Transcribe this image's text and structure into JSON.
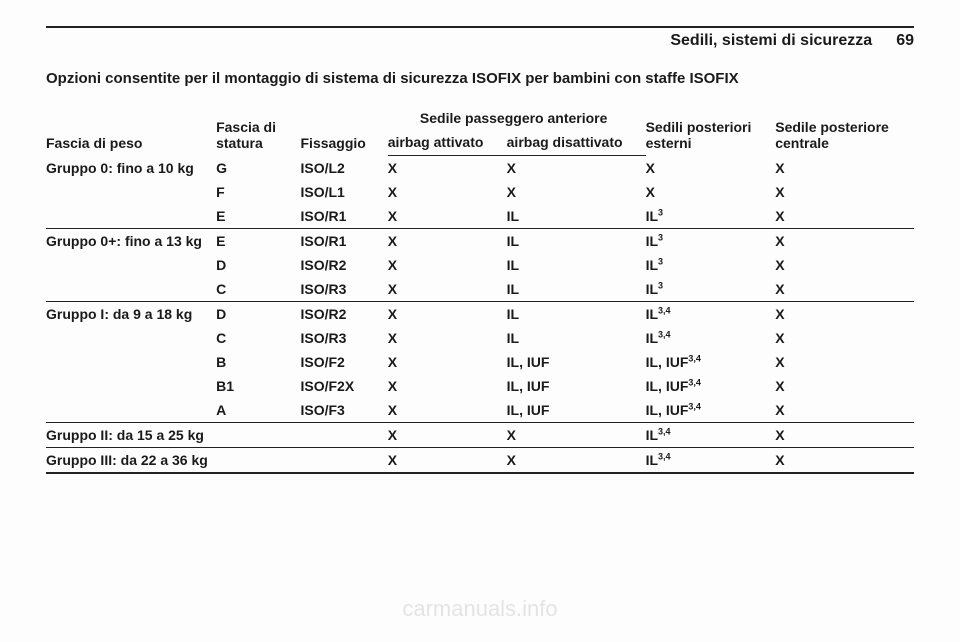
{
  "running_head": {
    "section": "Sedili, sistemi di sicurezza",
    "page": "69"
  },
  "section_title": "Opzioni consentite per il montaggio di sistema di sicurezza ISOFIX per bambini con staffe ISOFIX",
  "headers": {
    "peso": "Fascia di peso",
    "statura": "Fascia di statura",
    "fissaggio": "Fissaggio",
    "front_span": "Sedile passeggero anteriore",
    "airbag_on": "airbag attivato",
    "airbag_off": "airbag disattivato",
    "post_ext": "Sedili posteriori esterni",
    "post_cent": "Sedile posteriore centrale"
  },
  "groups": [
    {
      "label": "Gruppo 0: fino a 10 kg",
      "rows": [
        {
          "stat": "G",
          "fix": "ISO/L2",
          "on": "X",
          "off": "X",
          "ext": "X",
          "ext_sup": "",
          "cent": "X"
        },
        {
          "stat": "F",
          "fix": "ISO/L1",
          "on": "X",
          "off": "X",
          "ext": "X",
          "ext_sup": "",
          "cent": "X"
        },
        {
          "stat": "E",
          "fix": "ISO/R1",
          "on": "X",
          "off": "IL",
          "ext": "IL",
          "ext_sup": "3",
          "cent": "X"
        }
      ]
    },
    {
      "label": "Gruppo 0+: fino a 13 kg",
      "rows": [
        {
          "stat": "E",
          "fix": "ISO/R1",
          "on": "X",
          "off": "IL",
          "ext": "IL",
          "ext_sup": "3",
          "cent": "X"
        },
        {
          "stat": "D",
          "fix": "ISO/R2",
          "on": "X",
          "off": "IL",
          "ext": "IL",
          "ext_sup": "3",
          "cent": "X"
        },
        {
          "stat": "C",
          "fix": "ISO/R3",
          "on": "X",
          "off": "IL",
          "ext": "IL",
          "ext_sup": "3",
          "cent": "X"
        }
      ]
    },
    {
      "label": "Gruppo I: da 9 a 18 kg",
      "rows": [
        {
          "stat": "D",
          "fix": "ISO/R2",
          "on": "X",
          "off": "IL",
          "ext": "IL",
          "ext_sup": "3,4",
          "cent": "X"
        },
        {
          "stat": "C",
          "fix": "ISO/R3",
          "on": "X",
          "off": "IL",
          "ext": "IL",
          "ext_sup": "3,4",
          "cent": "X"
        },
        {
          "stat": "B",
          "fix": "ISO/F2",
          "on": "X",
          "off": "IL, IUF",
          "ext": "IL, IUF",
          "ext_sup": "3,4",
          "cent": "X"
        },
        {
          "stat": "B1",
          "fix": "ISO/F2X",
          "on": "X",
          "off": "IL, IUF",
          "ext": "IL, IUF",
          "ext_sup": "3,4",
          "cent": "X"
        },
        {
          "stat": "A",
          "fix": "ISO/F3",
          "on": "X",
          "off": "IL, IUF",
          "ext": "IL, IUF",
          "ext_sup": "3,4",
          "cent": "X"
        }
      ]
    },
    {
      "label": "Gruppo II: da 15 a 25 kg",
      "rows": [
        {
          "stat": "",
          "fix": "",
          "on": "X",
          "off": "X",
          "ext": "IL",
          "ext_sup": "3,4",
          "cent": "X"
        }
      ]
    },
    {
      "label": "Gruppo III: da 22 a 36 kg",
      "rows": [
        {
          "stat": "",
          "fix": "",
          "on": "X",
          "off": "X",
          "ext": "IL",
          "ext_sup": "3,4",
          "cent": "X"
        }
      ]
    }
  ],
  "watermark": "carmanuals.info"
}
